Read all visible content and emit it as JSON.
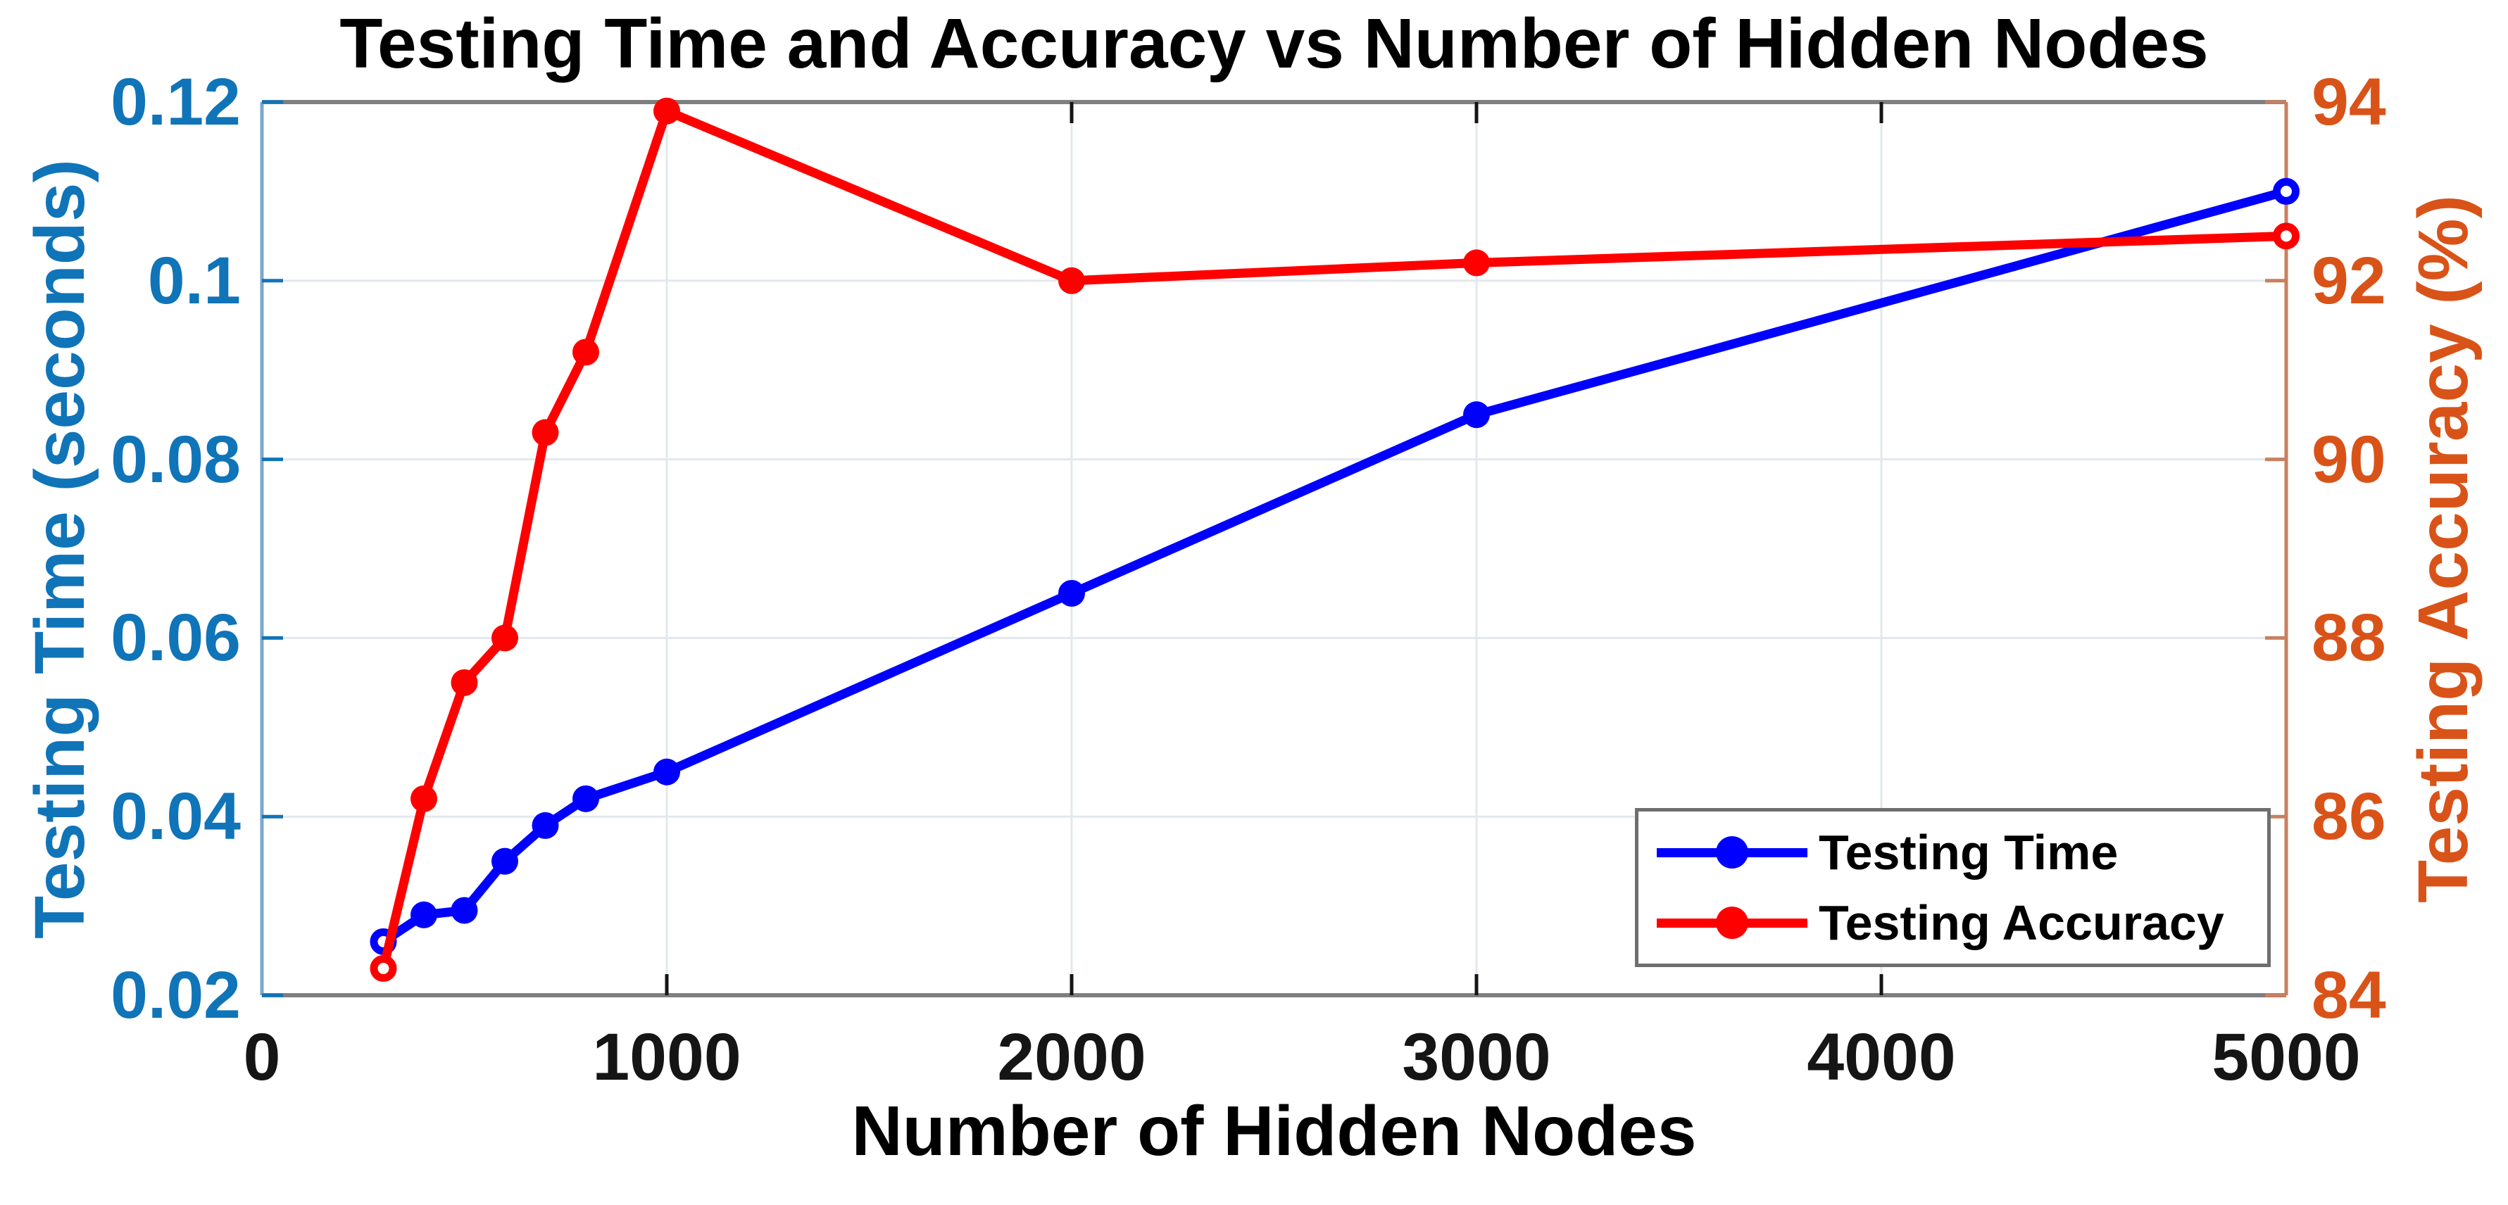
{
  "chart_data": {
    "type": "line",
    "title": "Testing Time and Accuracy vs Number of Hidden Nodes",
    "xlabel": "Number of Hidden Nodes",
    "ylabel_left": "Testing Time (seconds)",
    "ylabel_right": "Testing Accuracy (%)",
    "x": [
      300,
      400,
      500,
      600,
      700,
      800,
      1000,
      2000,
      3000,
      5000
    ],
    "series": [
      {
        "name": "Testing Time",
        "axis": "left",
        "color": "#0000FF",
        "marker": "circle",
        "values": [
          0.026,
          0.029,
          0.0295,
          0.035,
          0.039,
          0.042,
          0.045,
          0.065,
          0.085,
          0.11
        ]
      },
      {
        "name": "Testing Accuracy",
        "axis": "right",
        "color": "#FF0000",
        "marker": "circle",
        "values": [
          84.3,
          86.2,
          87.5,
          88.0,
          90.3,
          91.2,
          93.9,
          92.0,
          92.2,
          92.5
        ]
      }
    ],
    "xlim": [
      0,
      5000
    ],
    "ylim_left": [
      0.02,
      0.12
    ],
    "ylim_right": [
      84,
      94
    ],
    "xticks": {
      "values": [
        0,
        1000,
        2000,
        3000,
        4000,
        5000
      ],
      "labels": [
        "0",
        "1000",
        "2000",
        "3000",
        "4000",
        "5000"
      ]
    },
    "yticks_left": {
      "values": [
        0.02,
        0.04,
        0.06,
        0.08,
        0.1,
        0.12
      ],
      "labels": [
        "0.02",
        "0.04",
        "0.06",
        "0.08",
        "0.1",
        "0.12"
      ]
    },
    "yticks_right": {
      "values": [
        84,
        86,
        88,
        90,
        92,
        94
      ],
      "labels": [
        "84",
        "86",
        "88",
        "90",
        "92",
        "94"
      ]
    },
    "legend": {
      "position": "lower right",
      "entries": [
        "Testing Time",
        "Testing Accuracy"
      ]
    },
    "grid": true,
    "colors": {
      "axis_left": "#1074B8",
      "axis_right": "#D95319",
      "grid": "#E2E8EE",
      "spine_top_bottom": "#7F7F7F",
      "spine_left": "#79A8D0",
      "spine_right": "#C8805F",
      "legend_border": "#6E6E6E",
      "text": "#000000",
      "background": "#FFFFFF"
    }
  }
}
